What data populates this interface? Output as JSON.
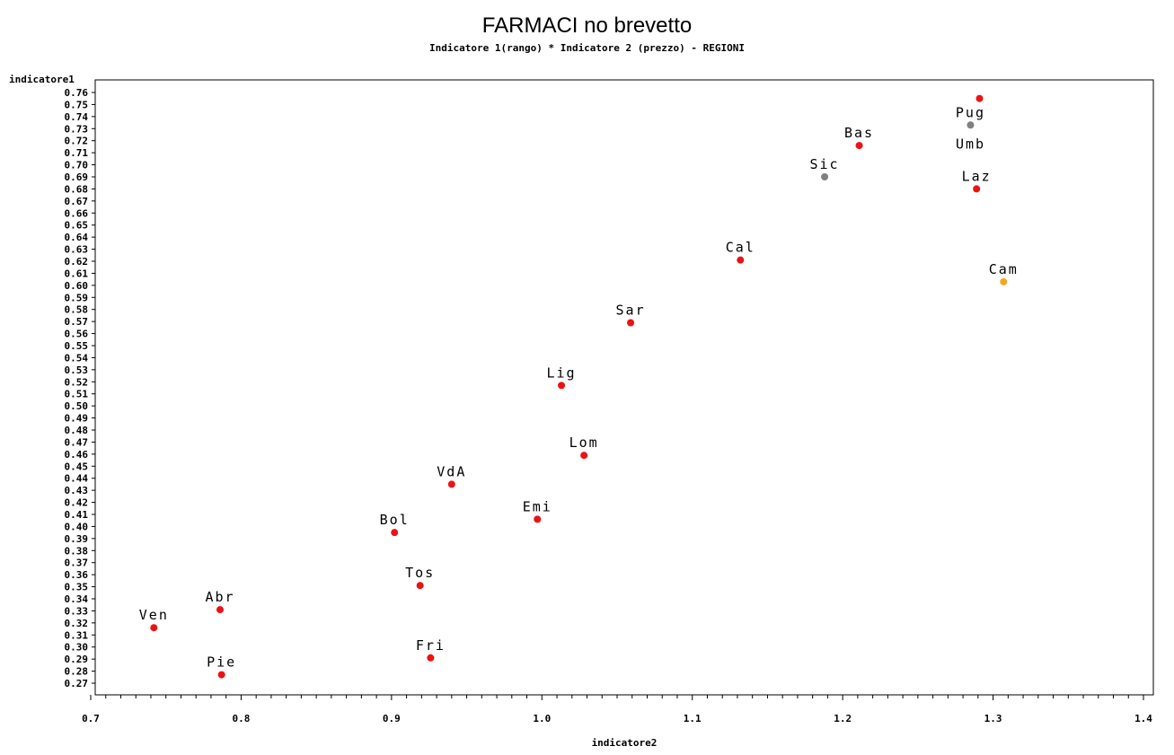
{
  "chart_data": {
    "type": "scatter",
    "title": "FARMACI no brevetto",
    "subtitle": "Indicatore 1(rango) * Indicatore 2 (prezzo) - REGIONI",
    "xlabel": "indicatore2",
    "ylabel": "indicatore1",
    "xlim": [
      0.7,
      1.4
    ],
    "ylim": [
      0.27,
      0.76
    ],
    "x_ticks": [
      "0.7",
      "0.8",
      "0.9",
      "1.0",
      "1.1",
      "1.2",
      "1.3",
      "1.4"
    ],
    "y_ticks": [
      "0.27",
      "0.28",
      "0.29",
      "0.30",
      "0.31",
      "0.32",
      "0.33",
      "0.34",
      "0.35",
      "0.36",
      "0.37",
      "0.38",
      "0.39",
      "0.40",
      "0.41",
      "0.42",
      "0.43",
      "0.44",
      "0.45",
      "0.46",
      "0.47",
      "0.48",
      "0.49",
      "0.50",
      "0.51",
      "0.52",
      "0.53",
      "0.54",
      "0.55",
      "0.56",
      "0.57",
      "0.58",
      "0.59",
      "0.60",
      "0.61",
      "0.62",
      "0.63",
      "0.64",
      "0.65",
      "0.66",
      "0.67",
      "0.68",
      "0.69",
      "0.70",
      "0.71",
      "0.72",
      "0.73",
      "0.74",
      "0.75",
      "0.76"
    ],
    "grid": false,
    "colors": {
      "red": "#ee1111",
      "gray": "#808080",
      "orange": "#f5a623"
    },
    "points": [
      {
        "label": "Ven",
        "x": 0.742,
        "y": 0.316,
        "color": "red"
      },
      {
        "label": "Pie",
        "x": 0.787,
        "y": 0.277,
        "color": "red"
      },
      {
        "label": "Abr",
        "x": 0.786,
        "y": 0.331,
        "color": "red"
      },
      {
        "label": "Bol",
        "x": 0.902,
        "y": 0.395,
        "color": "red"
      },
      {
        "label": "Tos",
        "x": 0.919,
        "y": 0.351,
        "color": "red"
      },
      {
        "label": "Fri",
        "x": 0.926,
        "y": 0.291,
        "color": "red"
      },
      {
        "label": "VdA",
        "x": 0.94,
        "y": 0.435,
        "color": "red"
      },
      {
        "label": "Emi",
        "x": 0.997,
        "y": 0.406,
        "color": "red"
      },
      {
        "label": "Lig",
        "x": 1.013,
        "y": 0.517,
        "color": "red"
      },
      {
        "label": "Lom",
        "x": 1.028,
        "y": 0.459,
        "color": "red"
      },
      {
        "label": "Sar",
        "x": 1.059,
        "y": 0.569,
        "color": "red"
      },
      {
        "label": "Cal",
        "x": 1.132,
        "y": 0.621,
        "color": "red"
      },
      {
        "label": "Sic",
        "x": 1.188,
        "y": 0.69,
        "color": "gray"
      },
      {
        "label": "Bas",
        "x": 1.211,
        "y": 0.716,
        "color": "red"
      },
      {
        "label": "Laz",
        "x": 1.289,
        "y": 0.68,
        "color": "red"
      },
      {
        "label": "Pug",
        "x": 1.285,
        "y": 0.733,
        "color": "gray"
      },
      {
        "label": "Umb",
        "x": 1.291,
        "y": 0.755,
        "color": "red"
      },
      {
        "label": "Cam",
        "x": 1.307,
        "y": 0.603,
        "color": "orange"
      }
    ]
  }
}
